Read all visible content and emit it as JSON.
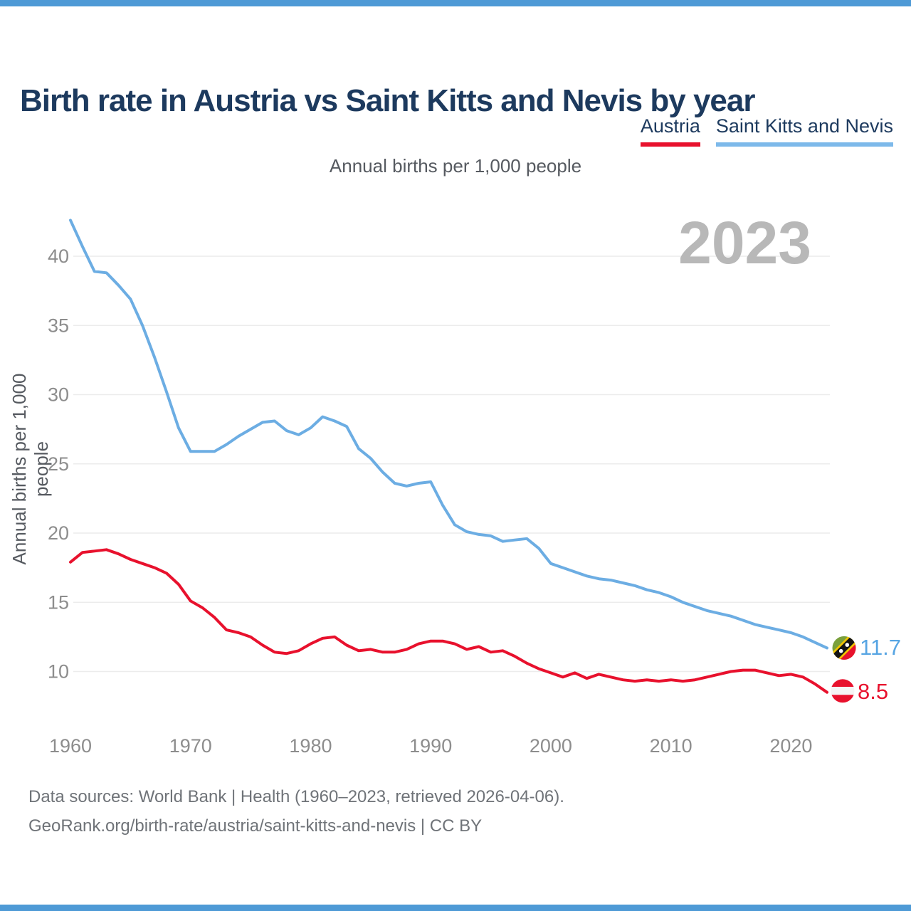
{
  "page": {
    "title": "Birth rate in Austria vs Saint Kitts and Nevis by year",
    "subtitle": "Annual births per 1,000 people",
    "y_axis_title": "Annual births per 1,000 people",
    "watermark": "2023"
  },
  "colors": {
    "accent_bar": "#4e9ad6",
    "austria_red": "#e8112d",
    "skn_line_blue": "#6cade3",
    "skn_underline_blue": "#7db9ea",
    "skn_label_blue": "#57a5e3",
    "title_navy": "#1d3a5e",
    "gridline_gray": "#ececec",
    "tick_gray": "#8d8d8d",
    "watermark_gray": "#b8b8b8",
    "skn_flag_green": "#7aa03c",
    "skn_flag_yellow": "#f2c500",
    "skn_flag_black": "#141414"
  },
  "legend": {
    "items": [
      {
        "label": "Austria",
        "underline_color": "#e8112d"
      },
      {
        "label": "Saint Kitts and Nevis",
        "underline_color": "#7db9ea"
      }
    ]
  },
  "chart_data": {
    "type": "line",
    "title": "Birth rate in Austria vs Saint Kitts and Nevis by year",
    "subtitle": "Annual births per 1,000 people",
    "ylabel": "Annual births per 1,000 people",
    "xlabel": "",
    "grid": "horizontal",
    "legend_position": "top-right",
    "watermark": "2023",
    "xlim": [
      1960,
      2023
    ],
    "ylim": [
      6.5,
      43.5
    ],
    "xticks": [
      1960,
      1970,
      1980,
      1990,
      2000,
      2010,
      2020
    ],
    "yticks": [
      10,
      15,
      20,
      25,
      30,
      35,
      40
    ],
    "x": [
      1960,
      1961,
      1962,
      1963,
      1964,
      1965,
      1966,
      1967,
      1968,
      1969,
      1970,
      1971,
      1972,
      1973,
      1974,
      1975,
      1976,
      1977,
      1978,
      1979,
      1980,
      1981,
      1982,
      1983,
      1984,
      1985,
      1986,
      1987,
      1988,
      1989,
      1990,
      1991,
      1992,
      1993,
      1994,
      1995,
      1996,
      1997,
      1998,
      1999,
      2000,
      2001,
      2002,
      2003,
      2004,
      2005,
      2006,
      2007,
      2008,
      2009,
      2010,
      2011,
      2012,
      2013,
      2014,
      2015,
      2016,
      2017,
      2018,
      2019,
      2020,
      2021,
      2022,
      2023
    ],
    "series": [
      {
        "name": "Saint Kitts and Nevis",
        "color": "#6cade3",
        "values": [
          42.6,
          40.7,
          38.9,
          38.8,
          37.9,
          36.9,
          35.0,
          32.7,
          30.2,
          27.6,
          25.9,
          25.9,
          25.9,
          26.4,
          27.0,
          27.5,
          28.0,
          28.1,
          27.4,
          27.1,
          27.6,
          28.4,
          28.1,
          27.7,
          26.1,
          25.4,
          24.4,
          23.6,
          23.4,
          23.6,
          23.7,
          22.0,
          20.6,
          20.1,
          19.9,
          19.8,
          19.4,
          19.5,
          19.6,
          18.9,
          17.8,
          17.5,
          17.2,
          16.9,
          16.7,
          16.6,
          16.4,
          16.2,
          15.9,
          15.7,
          15.4,
          15.0,
          14.7,
          14.4,
          14.2,
          14.0,
          13.7,
          13.4,
          13.2,
          13.0,
          12.8,
          12.5,
          12.1,
          11.7
        ]
      },
      {
        "name": "Austria",
        "color": "#e8112d",
        "values": [
          17.9,
          18.6,
          18.7,
          18.8,
          18.5,
          18.1,
          17.8,
          17.5,
          17.1,
          16.3,
          15.1,
          14.6,
          13.9,
          13.0,
          12.8,
          12.5,
          11.9,
          11.4,
          11.3,
          11.5,
          12.0,
          12.4,
          12.5,
          11.9,
          11.5,
          11.6,
          11.4,
          11.4,
          11.6,
          12.0,
          12.2,
          12.2,
          12.0,
          11.6,
          11.8,
          11.4,
          11.5,
          11.1,
          10.6,
          10.2,
          9.9,
          9.6,
          9.9,
          9.5,
          9.8,
          9.6,
          9.4,
          9.3,
          9.4,
          9.3,
          9.4,
          9.3,
          9.4,
          9.6,
          9.8,
          10.0,
          10.1,
          10.1,
          9.9,
          9.7,
          9.8,
          9.6,
          9.1,
          8.5
        ]
      }
    ],
    "end_labels": [
      {
        "series": "Saint Kitts and Nevis",
        "text": "11.7",
        "value": 11.7,
        "year": 2023
      },
      {
        "series": "Austria",
        "text": "8.5",
        "value": 8.5,
        "year": 2023
      }
    ]
  },
  "footer": {
    "line1": "Data sources: World Bank | Health (1960–2023, retrieved 2026-04-06).",
    "line2": "GeoRank.org/birth-rate/austria/saint-kitts-and-nevis | CC BY"
  }
}
